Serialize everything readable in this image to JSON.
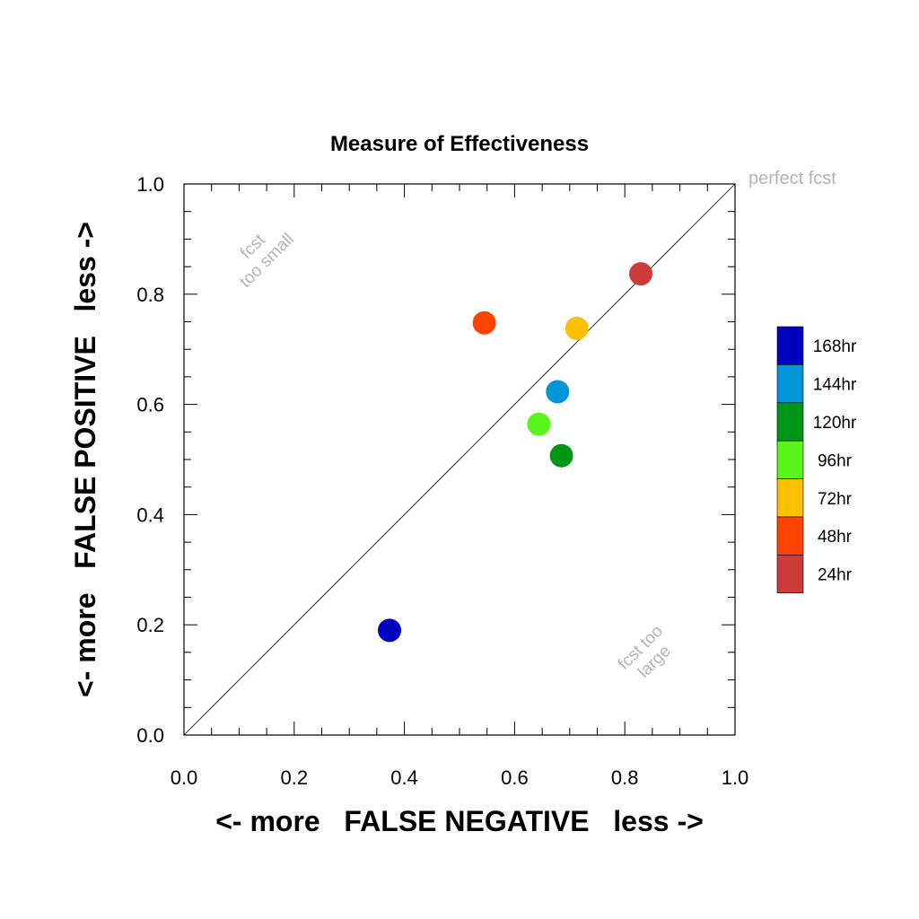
{
  "chart_data": {
    "type": "scatter",
    "title": "Measure of Effectiveness",
    "xlabel": "<- more   FALSE NEGATIVE   less ->",
    "ylabel": "<- more   FALSE POSITIVE   less ->",
    "xlim": [
      0,
      1
    ],
    "ylim": [
      0,
      1
    ],
    "x_ticks": [
      "0.0",
      "0.2",
      "0.4",
      "0.6",
      "0.8",
      "1.0"
    ],
    "y_ticks": [
      "0.0",
      "0.2",
      "0.4",
      "0.6",
      "0.8",
      "1.0"
    ],
    "grid": false,
    "legend_position": "right",
    "reference_line": {
      "from": [
        0,
        0
      ],
      "to": [
        1,
        1
      ]
    },
    "annotations": {
      "perfect": "perfect fcst",
      "too_small_1": "fcst",
      "too_small_2": "too small",
      "too_large_1": "fcst too",
      "too_large_2": "large"
    },
    "series": [
      {
        "name": "168hr",
        "color": "#0000c0",
        "x": 0.373,
        "y": 0.19
      },
      {
        "name": "144hr",
        "color": "#0095d8",
        "x": 0.678,
        "y": 0.623
      },
      {
        "name": "120hr",
        "color": "#009618",
        "x": 0.685,
        "y": 0.507
      },
      {
        "name": "96hr",
        "color": "#5af51b",
        "x": 0.644,
        "y": 0.564
      },
      {
        "name": "72hr",
        "color": "#ffc000",
        "x": 0.713,
        "y": 0.738
      },
      {
        "name": "48hr",
        "color": "#ff4400",
        "x": 0.545,
        "y": 0.748
      },
      {
        "name": "24hr",
        "color": "#cc3a3a",
        "x": 0.829,
        "y": 0.837
      }
    ]
  }
}
